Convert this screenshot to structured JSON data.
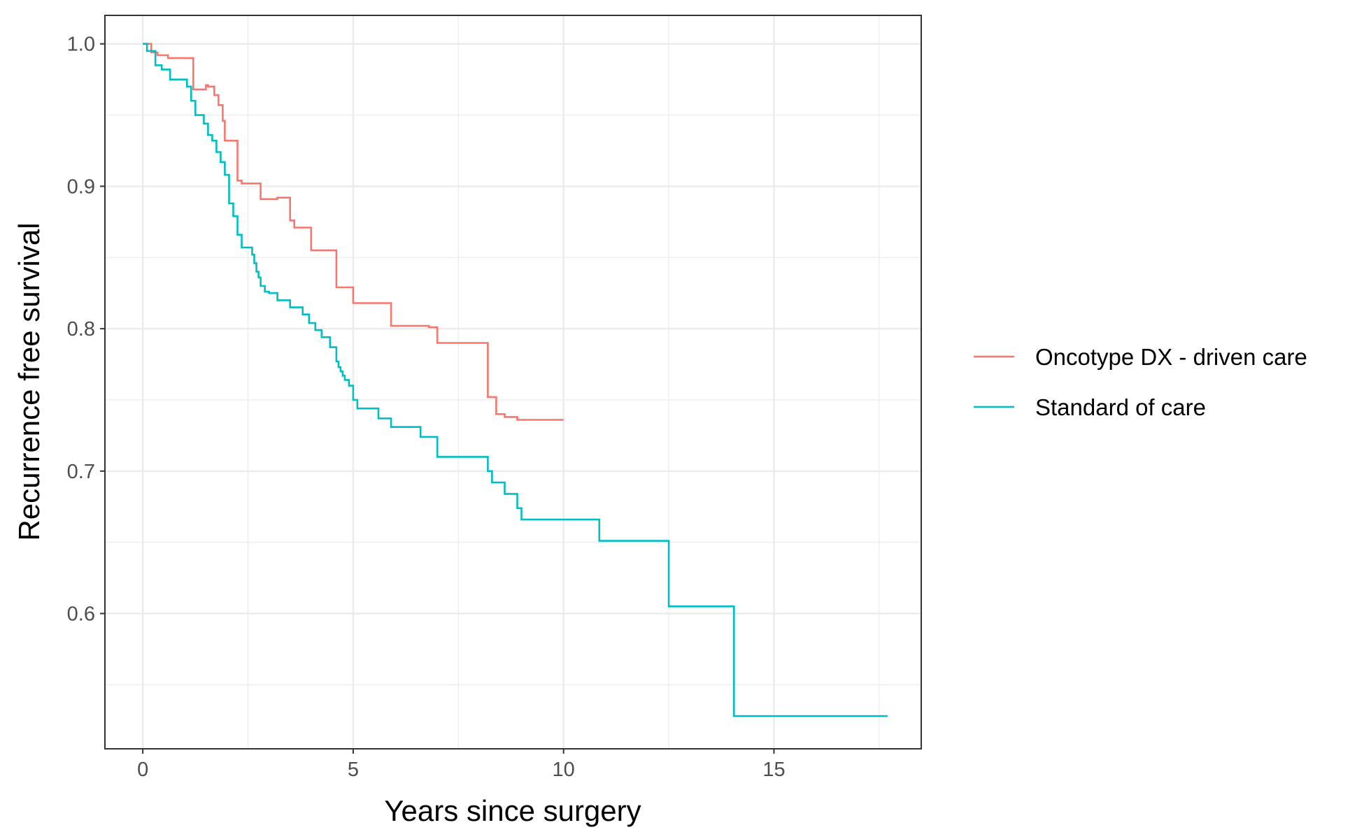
{
  "chart_data": {
    "type": "line",
    "step": true,
    "title": "",
    "xlabel": "Years since surgery",
    "ylabel": "Recurrence free survival",
    "xlim": [
      -0.9,
      18.5
    ],
    "ylim": [
      0.505,
      1.02
    ],
    "x_ticks": [
      0,
      5,
      10,
      15
    ],
    "x_tick_labels": [
      "0",
      "5",
      "10",
      "15"
    ],
    "y_ticks": [
      0.6,
      0.7,
      0.8,
      0.9,
      1.0
    ],
    "y_tick_labels": [
      "0.6",
      "0.7",
      "0.8",
      "0.9",
      "1.0"
    ],
    "grid": true,
    "legend_position": "right",
    "series": [
      {
        "name": "Oncotype DX - driven care",
        "color": "#F8766D",
        "x": [
          0,
          0.2,
          0.35,
          0.6,
          1.2,
          1.25,
          1.5,
          1.55,
          1.7,
          1.8,
          1.9,
          1.95,
          2.0,
          2.25,
          2.35,
          2.8,
          3.2,
          3.5,
          3.6,
          4.0,
          4.6,
          5.0,
          5.9,
          6.8,
          7.0,
          8.2,
          8.4,
          8.6,
          8.9,
          10.0
        ],
        "y": [
          1.0,
          0.994,
          0.992,
          0.99,
          0.968,
          0.968,
          0.971,
          0.97,
          0.964,
          0.957,
          0.946,
          0.932,
          0.932,
          0.904,
          0.902,
          0.891,
          0.892,
          0.876,
          0.871,
          0.855,
          0.829,
          0.818,
          0.802,
          0.801,
          0.79,
          0.752,
          0.74,
          0.738,
          0.736,
          0.736
        ]
      },
      {
        "name": "Standard of care",
        "color": "#00BFC4",
        "x": [
          0,
          0.1,
          0.3,
          0.45,
          0.65,
          0.9,
          1.05,
          1.15,
          1.25,
          1.45,
          1.55,
          1.65,
          1.75,
          1.85,
          1.95,
          2.05,
          2.15,
          2.25,
          2.35,
          2.6,
          2.65,
          2.7,
          2.75,
          2.8,
          2.9,
          3.0,
          3.2,
          3.5,
          3.8,
          3.95,
          4.1,
          4.25,
          4.45,
          4.6,
          4.65,
          4.7,
          4.75,
          4.8,
          4.9,
          5.0,
          5.1,
          5.6,
          5.9,
          6.6,
          7.0,
          8.0,
          8.2,
          8.3,
          8.6,
          8.9,
          9.0,
          10.85,
          12.5,
          14.05,
          17.7
        ],
        "y": [
          1.0,
          0.995,
          0.985,
          0.982,
          0.975,
          0.975,
          0.97,
          0.96,
          0.95,
          0.944,
          0.936,
          0.932,
          0.924,
          0.917,
          0.908,
          0.888,
          0.879,
          0.866,
          0.857,
          0.852,
          0.846,
          0.84,
          0.836,
          0.83,
          0.826,
          0.825,
          0.82,
          0.815,
          0.81,
          0.804,
          0.799,
          0.794,
          0.787,
          0.777,
          0.773,
          0.77,
          0.767,
          0.764,
          0.76,
          0.75,
          0.744,
          0.737,
          0.731,
          0.724,
          0.71,
          0.71,
          0.7,
          0.692,
          0.684,
          0.674,
          0.666,
          0.651,
          0.605,
          0.528,
          0.528
        ]
      }
    ]
  }
}
